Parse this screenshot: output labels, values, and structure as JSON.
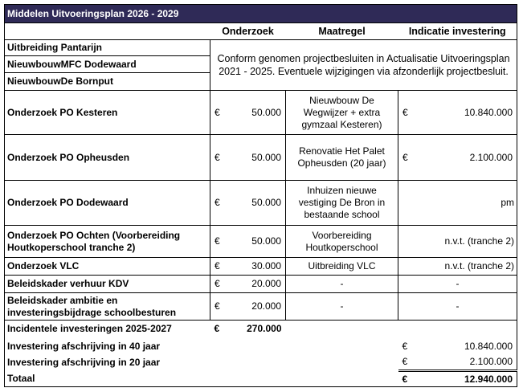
{
  "title": "Middelen Uitvoeringsplan 2026 - 2029",
  "headers": {
    "onderzoek": "Onderzoek",
    "maatregel": "Maatregel",
    "investering": "Indicatie investering"
  },
  "currency": "€",
  "projects_merged": {
    "items": [
      "Uitbreiding Pantarijn",
      "NieuwbouwMFC Dodewaard",
      "NieuwbouwDe Bornput"
    ],
    "note": "Conform genomen projectbesluiten in Actualisatie Uitvoeringsplan 2021 - 2025. Eventuele wijzigingen via afzonderlijk projectbesluit."
  },
  "rows": [
    {
      "label": "Onderzoek PO Kesteren",
      "onderzoek": "50.000",
      "maatregel": "Nieuwbouw De Wegwijzer + extra gymzaal Kesteren)",
      "investering": "10.840.000",
      "inv_currency": true
    },
    {
      "label": "Onderzoek PO Opheusden",
      "onderzoek": "50.000",
      "maatregel": "Renovatie Het Palet Opheusden (20 jaar)",
      "investering": "2.100.000",
      "inv_currency": true
    },
    {
      "label": "Onderzoek PO Dodewaard",
      "onderzoek": "50.000",
      "maatregel": "Inhuizen nieuwe vestiging De Bron in bestaande school",
      "investering": "pm",
      "inv_currency": false
    },
    {
      "label": "Onderzoek PO Ochten (Voorbereiding Houtkoperschool tranche 2)",
      "onderzoek": "50.000",
      "maatregel": "Voorbereiding Houtkoperschool",
      "investering": "n.v.t. (tranche 2)",
      "inv_currency": false
    },
    {
      "label": "Onderzoek VLC",
      "onderzoek": "30.000",
      "maatregel": "Uitbreiding VLC",
      "investering": "n.v.t. (tranche 2)",
      "inv_currency": false
    },
    {
      "label": "Beleidskader verhuur KDV",
      "onderzoek": "20.000",
      "maatregel": "-",
      "investering": "-",
      "inv_currency": false
    },
    {
      "label": "Beleidskader ambitie en investeringsbijdrage schoolbesturen",
      "onderzoek": "20.000",
      "maatregel": "-",
      "investering": "-",
      "inv_currency": false
    }
  ],
  "summary": {
    "incidenteel": {
      "label": "Incidentele investeringen 2025-2027",
      "value": "270.000"
    },
    "afschr40": {
      "label": "Investering afschrijving in 40 jaar",
      "value": "10.840.000"
    },
    "afschr20": {
      "label": "Investering afschrijving in 20 jaar",
      "value": "2.100.000"
    },
    "totaal": {
      "label": "Totaal",
      "value": "12.940.000"
    }
  },
  "colors": {
    "title_bar": "#2f2a57"
  }
}
